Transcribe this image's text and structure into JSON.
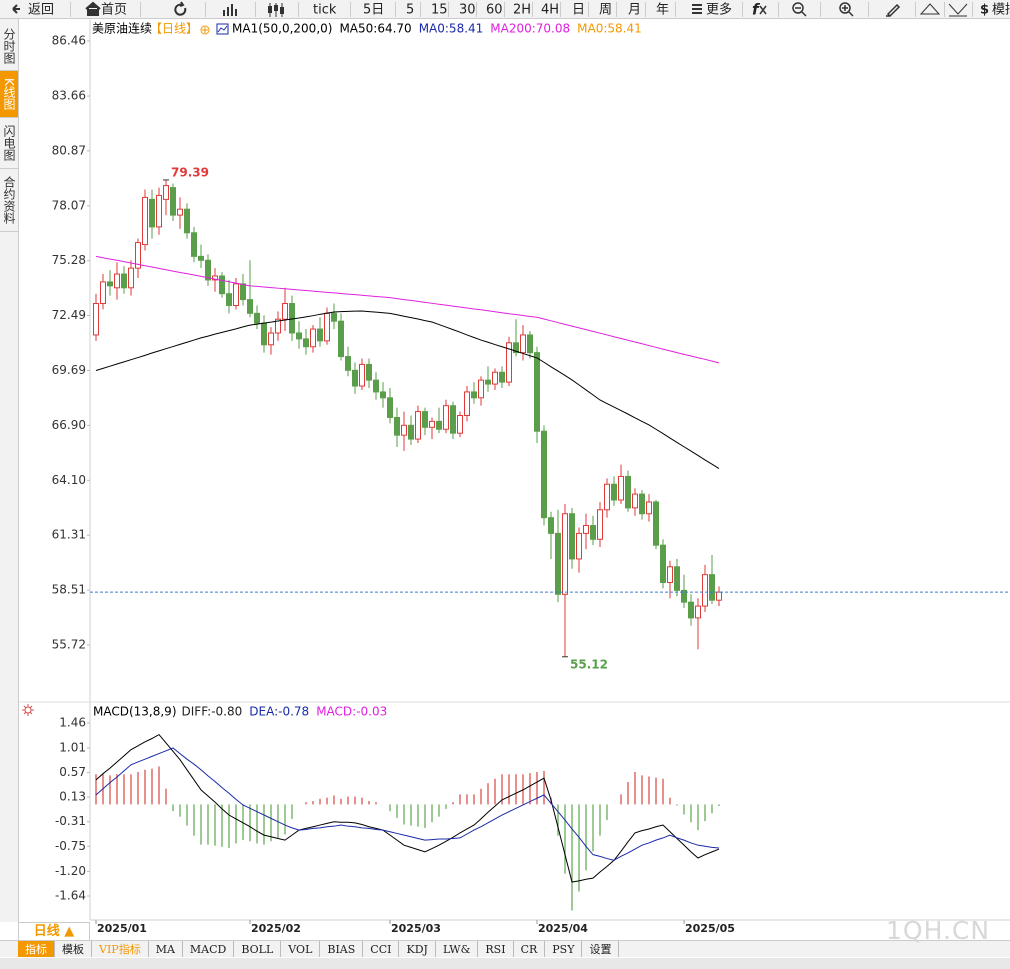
{
  "toolbar": {
    "buttons": [
      "返回",
      "首页",
      "tick",
      "5日",
      "5",
      "15",
      "30",
      "60",
      "2H",
      "4H",
      "日",
      "周",
      "月",
      "年",
      "更多",
      "模拟"
    ]
  },
  "side_tabs": [
    "分时图",
    "K线图",
    "闪电图",
    "合约资料"
  ],
  "chart_data": [
    {
      "type": "candlestick",
      "title": "美原油连续",
      "subtitle": "【日线】",
      "legend": [
        {
          "text": "MA1(50,0,200,0)",
          "color": "#000000"
        },
        {
          "text": "MA50:64.70",
          "color": "#000000"
        },
        {
          "text": "MA0:58.41",
          "color": "#1a2aa8"
        },
        {
          "text": "MA200:70.08",
          "color": "#e020e0"
        },
        {
          "text": "MA0:58.41",
          "color": "#f39800"
        }
      ],
      "ylim": [
        52.92,
        87.53
      ],
      "yticks": [
        86.46,
        83.66,
        80.87,
        78.07,
        75.28,
        72.49,
        69.69,
        {
          "value": 66.9,
          "label": "66.90"
        },
        {
          "value": 64.1,
          "label": "64.10"
        },
        61.31,
        58.51,
        55.72
      ],
      "grid": false,
      "series": [
        {
          "type": "candlestick",
          "up_color": "#e03a3a",
          "down_color": "#5a9e4b",
          "last_line_color": "#3a7bd5",
          "open": [
            71.5,
            73.1,
            74.2,
            73.9,
            74.6,
            73.9,
            74.9,
            76.1,
            78.4,
            77.0,
            78.4,
            79.0,
            77.6,
            77.9,
            76.7,
            75.5,
            75.3,
            74.3,
            74.5,
            73.6,
            73.0,
            74.1,
            73.3,
            72.6,
            72.1,
            71.0,
            71.6,
            72.3,
            73.1,
            71.6,
            71.3,
            70.9,
            71.8,
            71.2,
            72.6,
            72.2,
            70.4,
            69.7,
            68.9,
            70.0,
            69.2,
            68.6,
            68.3,
            67.3,
            66.4,
            66.9,
            66.2,
            67.6,
            66.8,
            67.1,
            66.7,
            67.9,
            66.5,
            67.4,
            68.6,
            68.3,
            69.2,
            69.0,
            69.6,
            69.1,
            71.1,
            70.6,
            71.5,
            70.6,
            66.6,
            62.2,
            61.4,
            58.3,
            62.4,
            60.1,
            61.4,
            61.8,
            61.1,
            62.6,
            63.9,
            63.1,
            64.3,
            62.7,
            63.4,
            62.4,
            63.0,
            60.8,
            58.9,
            59.7,
            58.5,
            57.9,
            57.1,
            57.7,
            59.3,
            58.0
          ],
          "high": [
            73.6,
            74.6,
            74.8,
            75.2,
            75.0,
            75.3,
            76.4,
            78.9,
            78.9,
            79.0,
            79.39,
            79.2,
            78.5,
            78.2,
            77.0,
            76.1,
            75.6,
            74.9,
            74.7,
            74.3,
            74.4,
            74.6,
            75.3,
            73.0,
            72.5,
            71.9,
            72.7,
            73.9,
            73.5,
            72.2,
            71.8,
            72.0,
            72.4,
            72.9,
            73.1,
            72.6,
            70.9,
            70.1,
            70.3,
            70.3,
            69.6,
            69.1,
            68.8,
            67.8,
            67.6,
            67.4,
            67.9,
            67.8,
            67.3,
            67.8,
            68.2,
            68.1,
            67.6,
            68.9,
            69.1,
            69.4,
            69.9,
            69.8,
            69.9,
            71.4,
            72.3,
            72.0,
            71.7,
            70.9,
            66.9,
            62.5,
            62.6,
            62.9,
            62.7,
            61.7,
            62.4,
            62.3,
            63.0,
            64.2,
            64.3,
            64.9,
            64.6,
            63.7,
            63.6,
            63.4,
            63.1,
            61.1,
            60.0,
            60.1,
            59.3,
            58.3,
            58.1,
            59.8,
            60.3,
            58.7
          ],
          "low": [
            71.2,
            72.8,
            73.5,
            73.3,
            73.6,
            73.5,
            74.4,
            75.8,
            76.4,
            76.6,
            77.6,
            77.3,
            76.9,
            76.4,
            75.2,
            74.9,
            74.0,
            73.7,
            73.4,
            72.6,
            72.8,
            73.0,
            72.4,
            71.8,
            70.6,
            70.5,
            71.2,
            71.7,
            71.2,
            70.8,
            70.5,
            70.6,
            70.9,
            71.0,
            71.8,
            70.2,
            69.4,
            68.5,
            68.7,
            68.8,
            68.2,
            67.8,
            67.0,
            65.8,
            65.6,
            65.9,
            66.0,
            66.4,
            66.2,
            66.5,
            66.5,
            66.2,
            66.3,
            67.1,
            68.0,
            67.9,
            68.6,
            68.7,
            68.8,
            68.9,
            70.4,
            70.2,
            70.3,
            66.0,
            61.8,
            60.1,
            57.9,
            55.12,
            59.6,
            59.4,
            60.6,
            60.8,
            60.7,
            62.2,
            62.8,
            62.9,
            62.5,
            62.3,
            62.1,
            62.0,
            60.6,
            58.6,
            58.1,
            58.2,
            57.6,
            56.7,
            55.5,
            57.4,
            57.8,
            57.7
          ],
          "close": [
            73.1,
            74.2,
            74.0,
            74.6,
            73.9,
            74.9,
            76.2,
            78.5,
            77.0,
            78.6,
            79.1,
            77.6,
            77.9,
            76.7,
            75.5,
            75.3,
            74.3,
            74.5,
            73.6,
            73.0,
            74.1,
            73.3,
            72.6,
            72.1,
            71.0,
            71.6,
            72.3,
            73.1,
            71.6,
            71.3,
            70.9,
            71.8,
            71.2,
            72.6,
            72.2,
            70.4,
            69.7,
            68.9,
            70.0,
            69.2,
            68.6,
            68.3,
            67.3,
            66.4,
            66.9,
            66.2,
            67.6,
            66.8,
            67.1,
            66.7,
            67.9,
            66.5,
            67.4,
            68.6,
            68.3,
            69.2,
            69.0,
            69.6,
            69.1,
            71.1,
            70.6,
            71.5,
            70.6,
            66.6,
            62.2,
            61.4,
            58.3,
            62.4,
            60.1,
            61.4,
            61.8,
            61.1,
            62.6,
            63.9,
            63.1,
            64.3,
            62.7,
            63.4,
            62.4,
            63.0,
            60.8,
            58.9,
            59.7,
            58.5,
            57.9,
            57.1,
            57.7,
            59.3,
            58.0,
            58.41
          ]
        },
        {
          "type": "line",
          "color": "#000000",
          "values": [
            69.69,
            69.8,
            69.91,
            70.02,
            70.13,
            70.24,
            70.35,
            70.46,
            70.58,
            70.69,
            70.8,
            70.91,
            71.02,
            71.13,
            71.24,
            71.35,
            71.44,
            71.54,
            71.63,
            71.72,
            71.81,
            71.91,
            72.0,
            72.05,
            72.1,
            72.15,
            72.21,
            72.26,
            72.31,
            72.36,
            72.42,
            72.48,
            72.55,
            72.61,
            72.67,
            72.69,
            72.7,
            72.71,
            72.72,
            72.69,
            72.66,
            72.63,
            72.6,
            72.53,
            72.45,
            72.38,
            72.31,
            72.23,
            72.16,
            72.03,
            71.9,
            71.77,
            71.64,
            71.5,
            71.37,
            71.24,
            71.13,
            71.01,
            70.9,
            70.79,
            70.67,
            70.56,
            70.44,
            70.33,
            70.11,
            69.88,
            69.66,
            69.44,
            69.21,
            68.96,
            68.7,
            68.45,
            68.19,
            68.01,
            67.83,
            67.65,
            67.47,
            67.28,
            67.1,
            66.92,
            66.7,
            66.48,
            66.25,
            66.03,
            65.81,
            65.59,
            65.37,
            65.14,
            64.92,
            64.7
          ]
        },
        {
          "type": "line",
          "color": "#e020e0",
          "values": [
            75.5,
            75.43,
            75.36,
            75.3,
            75.23,
            75.16,
            75.09,
            75.02,
            74.96,
            74.89,
            74.82,
            74.75,
            74.68,
            74.62,
            74.55,
            74.48,
            74.41,
            74.34,
            74.28,
            74.21,
            74.14,
            74.07,
            74.0,
            73.97,
            73.94,
            73.91,
            73.88,
            73.85,
            73.82,
            73.79,
            73.76,
            73.73,
            73.7,
            73.67,
            73.64,
            73.61,
            73.58,
            73.55,
            73.52,
            73.49,
            73.46,
            73.43,
            73.4,
            73.35,
            73.3,
            73.26,
            73.21,
            73.16,
            73.11,
            73.06,
            73.02,
            72.97,
            72.92,
            72.87,
            72.82,
            72.78,
            72.73,
            72.68,
            72.63,
            72.58,
            72.54,
            72.49,
            72.44,
            72.4,
            72.31,
            72.22,
            72.13,
            72.04,
            71.95,
            71.86,
            71.77,
            71.68,
            71.59,
            71.5,
            71.41,
            71.32,
            71.23,
            71.14,
            71.05,
            70.96,
            70.87,
            70.78,
            70.69,
            70.6,
            70.51,
            70.43,
            70.34,
            70.26,
            70.17,
            70.08
          ]
        }
      ]
    },
    {
      "type": "macd",
      "title": "MACD(13,8,9)",
      "legend": [
        {
          "text": "DIFF:-0.80",
          "color": "#222222"
        },
        {
          "text": "DEA:-0.78",
          "color": "#1a2aa8"
        },
        {
          "text": "MACD:-0.03",
          "color": "#e020e0"
        }
      ],
      "categories": [
        "2025/01",
        null,
        null,
        null,
        null,
        null,
        null,
        null,
        null,
        null,
        null,
        null,
        null,
        null,
        null,
        null,
        null,
        null,
        null,
        null,
        null,
        null,
        "2025/02",
        null,
        null,
        null,
        null,
        null,
        null,
        null,
        null,
        null,
        null,
        null,
        null,
        null,
        null,
        null,
        null,
        null,
        null,
        null,
        "2025/03",
        null,
        null,
        null,
        null,
        null,
        null,
        null,
        null,
        null,
        null,
        null,
        null,
        null,
        null,
        null,
        null,
        null,
        null,
        null,
        null,
        "2025/04",
        null,
        null,
        null,
        null,
        null,
        null,
        null,
        null,
        null,
        null,
        null,
        null,
        null,
        null,
        null,
        null,
        null,
        null,
        null,
        null,
        "2025/05",
        null,
        null,
        null,
        null,
        null
      ],
      "ylim": [
        -2.07,
        1.78
      ],
      "yticks": [
        1.46,
        1.01,
        0.57,
        0.13,
        -0.31,
        -0.75,
        {
          "value": -1.2,
          "label": "-1.20"
        },
        -1.64
      ],
      "grid": false,
      "series": [
        {
          "type": "histogram",
          "up_color": "#d9534f",
          "down_color": "#6aab5a",
          "values": [
            0.54,
            0.54,
            0.52,
            0.54,
            0.54,
            0.54,
            0.58,
            0.62,
            0.64,
            0.68,
            0.28,
            -0.12,
            -0.22,
            -0.38,
            -0.56,
            -0.72,
            -0.72,
            -0.74,
            -0.76,
            -0.78,
            -0.7,
            -0.64,
            -0.66,
            -0.7,
            -0.72,
            -0.66,
            -0.6,
            -0.54,
            -0.26,
            0,
            0.04,
            0.06,
            0.1,
            0.12,
            0.16,
            0.1,
            0.14,
            0.14,
            0.12,
            0.06,
            0.04,
            0,
            -0.12,
            -0.24,
            -0.36,
            -0.38,
            -0.4,
            -0.42,
            -0.32,
            -0.22,
            -0.08,
            0.04,
            0.18,
            0.18,
            0.18,
            0.28,
            0.38,
            0.46,
            0.54,
            0.54,
            0.54,
            0.54,
            0.56,
            0.58,
            0.6,
            0.12,
            -0.56,
            -1.24,
            -1.9,
            -1.56,
            -1.18,
            -0.84,
            -0.56,
            -0.28,
            0,
            0.18,
            0.4,
            0.58,
            0.52,
            0.5,
            0.48,
            0.46,
            0.12,
            -0.02,
            -0.18,
            -0.32,
            -0.46,
            -0.3,
            -0.16,
            -0.03
          ]
        },
        {
          "type": "line",
          "color": "#000000",
          "values": [
            0.44,
            0.55,
            0.65,
            0.76,
            0.87,
            0.98,
            1.05,
            1.12,
            1.18,
            1.25,
            1.1,
            0.95,
            0.8,
            0.62,
            0.44,
            0.26,
            0.15,
            0.04,
            -0.08,
            -0.19,
            -0.26,
            -0.33,
            -0.4,
            -0.48,
            -0.55,
            -0.58,
            -0.61,
            -0.64,
            -0.55,
            -0.46,
            -0.43,
            -0.4,
            -0.37,
            -0.34,
            -0.31,
            -0.32,
            -0.32,
            -0.33,
            -0.36,
            -0.4,
            -0.43,
            -0.46,
            -0.55,
            -0.64,
            -0.73,
            -0.77,
            -0.81,
            -0.85,
            -0.79,
            -0.73,
            -0.66,
            -0.59,
            -0.51,
            -0.44,
            -0.37,
            -0.26,
            -0.14,
            -0.03,
            0.08,
            0.14,
            0.2,
            0.26,
            0.33,
            0.4,
            0.47,
            0.08,
            -0.41,
            -0.9,
            -1.39,
            -1.37,
            -1.34,
            -1.32,
            -1.21,
            -1.11,
            -1.0,
            -0.84,
            -0.67,
            -0.51,
            -0.47,
            -0.44,
            -0.4,
            -0.37,
            -0.49,
            -0.61,
            -0.73,
            -0.85,
            -0.96,
            -0.9,
            -0.85,
            -0.8
          ]
        },
        {
          "type": "line",
          "color": "#1a2aa8",
          "values": [
            0.17,
            0.28,
            0.39,
            0.49,
            0.6,
            0.71,
            0.76,
            0.81,
            0.86,
            0.91,
            0.96,
            1.01,
            0.91,
            0.81,
            0.72,
            0.62,
            0.51,
            0.41,
            0.3,
            0.2,
            0.09,
            -0.01,
            -0.07,
            -0.13,
            -0.19,
            -0.25,
            -0.31,
            -0.37,
            -0.42,
            -0.46,
            -0.45,
            -0.43,
            -0.42,
            -0.4,
            -0.39,
            -0.37,
            -0.39,
            -0.4,
            -0.42,
            -0.43,
            -0.45,
            -0.46,
            -0.49,
            -0.52,
            -0.55,
            -0.58,
            -0.61,
            -0.64,
            -0.63,
            -0.62,
            -0.62,
            -0.61,
            -0.6,
            -0.53,
            -0.46,
            -0.4,
            -0.33,
            -0.26,
            -0.19,
            -0.13,
            -0.07,
            -0.01,
            0.05,
            0.11,
            0.17,
            0.02,
            -0.13,
            -0.28,
            -0.44,
            -0.59,
            -0.75,
            -0.9,
            -0.93,
            -0.97,
            -1.0,
            -0.93,
            -0.87,
            -0.8,
            -0.73,
            -0.69,
            -0.64,
            -0.6,
            -0.55,
            -0.6,
            -0.64,
            -0.69,
            -0.73,
            -0.75,
            -0.77,
            -0.78
          ]
        }
      ]
    }
  ],
  "bottom": {
    "period": "日线 ▲",
    "tabs": [
      "指标",
      "模板",
      "VIP指标",
      "MA",
      "MACD",
      "BOLL",
      "VOL",
      "BIAS",
      "CCI",
      "KDJ",
      "LW&",
      "RSI",
      "CR",
      "PSY",
      "设置"
    ]
  },
  "watermark": "1QH.CN"
}
